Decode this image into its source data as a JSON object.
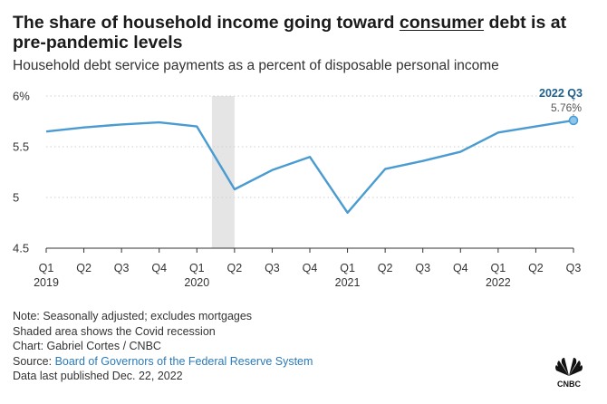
{
  "header": {
    "title_before": "The share of household income going toward ",
    "title_underlined": "consumer",
    "title_after": " debt is at pre-pandemic levels",
    "subtitle": "Household debt service payments as a percent of disposable personal income"
  },
  "chart_data": {
    "type": "line",
    "title": "The share of household income going toward consumer debt is at pre-pandemic levels",
    "subtitle": "Household debt service payments as a percent of disposable personal income",
    "categories": [
      "Q1",
      "Q2",
      "Q3",
      "Q4",
      "Q1",
      "Q2",
      "Q3",
      "Q4",
      "Q1",
      "Q2",
      "Q3",
      "Q4",
      "Q1",
      "Q2",
      "Q3"
    ],
    "years": [
      {
        "label": "2019",
        "at_index": 0
      },
      {
        "label": "2020",
        "at_index": 4
      },
      {
        "label": "2021",
        "at_index": 8
      },
      {
        "label": "2022",
        "at_index": 12
      }
    ],
    "series": [
      {
        "values": [
          5.65,
          5.69,
          5.72,
          5.74,
          5.7,
          5.08,
          5.27,
          5.4,
          4.85,
          5.28,
          5.36,
          5.45,
          5.64,
          5.7,
          5.76
        ],
        "color": "#4a9bd1"
      }
    ],
    "ylim": [
      4.5,
      6.0
    ],
    "yticks": [
      4.5,
      5,
      5.5,
      6
    ],
    "ytick_labels": [
      "4.5",
      "5",
      "5.5",
      "6%"
    ],
    "grid": "horizontal-dashed",
    "recession_shading": {
      "from_index": 4.4,
      "to_index": 5
    },
    "annotation": {
      "label": "2022 Q3",
      "value": "5.76%",
      "index": 14
    },
    "colors": {
      "line": "#4a9bd1",
      "shade": "#e5e5e5",
      "grid": "#cfcfcf",
      "annotation": "#1f5f8b"
    }
  },
  "notes": {
    "line1": "Note: Seasonally adjusted; excludes mortgages",
    "line2": "Shaded area shows the Covid recession",
    "line3": "Chart: Gabriel Cortes / CNBC",
    "source_prefix": "Source: ",
    "source_link": "Board of Governors of the Federal Reserve System",
    "line5": "Data last published Dec. 22, 2022"
  },
  "logo": {
    "icon": "cnbc-peacock-logo",
    "text": "CNBC"
  }
}
